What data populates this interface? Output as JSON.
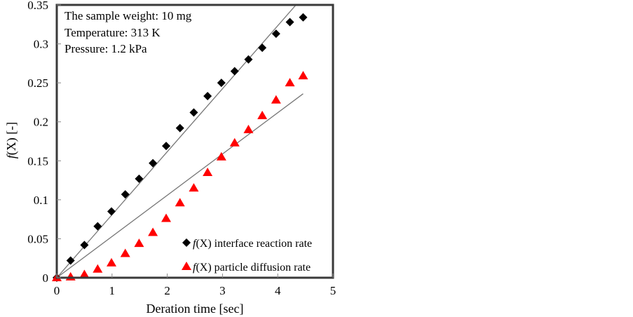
{
  "chart_data": {
    "type": "scatter",
    "title": "",
    "xlabel": "Deration time [sec]",
    "ylabel": "f(X) [-]",
    "ylabel_italic_part": "f",
    "ylabel_rest": "(X) [-]",
    "xlim": [
      0,
      5
    ],
    "ylim": [
      0,
      0.35
    ],
    "xticks": [
      0,
      1,
      2,
      3,
      4,
      5
    ],
    "yticks": [
      0,
      0.05,
      0.1,
      0.15,
      0.2,
      0.25,
      0.3,
      0.35
    ],
    "xtick_labels": [
      "0",
      "1",
      "2",
      "3",
      "4",
      "5"
    ],
    "ytick_labels": [
      "0",
      "0.05",
      "0.1",
      "0.15",
      "0.2",
      "0.25",
      "0.3",
      "0.35"
    ],
    "grid": false,
    "annotations": [
      "The sample weight: 10 mg",
      "Temperature: 313 K",
      "Pressure: 1.2 kPa"
    ],
    "legend_position": "bottom-right",
    "x": [
      0,
      0.25,
      0.5,
      0.74,
      0.99,
      1.24,
      1.49,
      1.74,
      1.98,
      2.23,
      2.48,
      2.73,
      2.98,
      3.22,
      3.47,
      3.72,
      3.97,
      4.22,
      4.46
    ],
    "series": [
      {
        "name": "f(X) interface reaction rate",
        "legend_italic": "f",
        "legend_rest": "(X) interface reaction rate",
        "marker": "diamond",
        "color": "#000000",
        "values": [
          0,
          0.022,
          0.042,
          0.066,
          0.085,
          0.107,
          0.127,
          0.147,
          0.169,
          0.192,
          0.212,
          0.233,
          0.25,
          0.265,
          0.28,
          0.295,
          0.313,
          0.328,
          0.334
        ],
        "fit_line": {
          "x": [
            0,
            4.33
          ],
          "y": [
            0,
            0.35
          ],
          "color": "#777777"
        }
      },
      {
        "name": "f(X) particle diffusion rate",
        "legend_italic": "f",
        "legend_rest": "(X) particle diffusion rate",
        "marker": "triangle",
        "color": "#ff0000",
        "values": [
          0,
          0.001,
          0.004,
          0.011,
          0.019,
          0.031,
          0.044,
          0.058,
          0.076,
          0.096,
          0.115,
          0.135,
          0.155,
          0.173,
          0.19,
          0.208,
          0.228,
          0.25,
          0.259
        ],
        "fit_line": {
          "x": [
            0,
            4.46
          ],
          "y": [
            0,
            0.236
          ],
          "color": "#777777"
        }
      }
    ]
  }
}
